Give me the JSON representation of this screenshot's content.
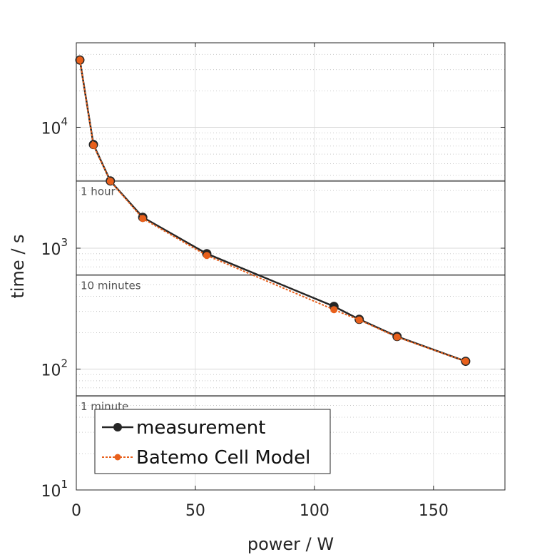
{
  "chart_data": {
    "type": "line",
    "xlabel": "power / W",
    "ylabel": "time / s",
    "xlim": [
      0,
      180
    ],
    "ylim": [
      10,
      50000
    ],
    "yscale": "log",
    "grid": true,
    "legend_position": "bottom-left",
    "x_ticks": [
      {
        "value": 0,
        "label": "0"
      },
      {
        "value": 50,
        "label": "50"
      },
      {
        "value": 100,
        "label": "100"
      },
      {
        "value": 150,
        "label": "150"
      }
    ],
    "y_ticks": [
      {
        "value": 10,
        "base": "10",
        "exp": "1"
      },
      {
        "value": 100,
        "base": "10",
        "exp": "2"
      },
      {
        "value": 1000,
        "base": "10",
        "exp": "3"
      },
      {
        "value": 10000,
        "base": "10",
        "exp": "4"
      }
    ],
    "reference_lines": [
      {
        "value": 3600,
        "label": "1 hour"
      },
      {
        "value": 600,
        "label": "10 minutes"
      },
      {
        "value": 60,
        "label": "1 minute"
      }
    ],
    "series": [
      {
        "name": "measurement",
        "color": "#262626",
        "style": "solid",
        "x": [
          1.5,
          7.2,
          14.3,
          27.9,
          54.8,
          108.2,
          118.8,
          134.7,
          163.5
        ],
        "y": [
          36000,
          7200,
          3600,
          1800,
          900,
          330,
          258,
          186,
          116
        ]
      },
      {
        "name": "Batemo Cell Model",
        "color": "#e8601c",
        "style": "dotted",
        "x": [
          1.5,
          7.2,
          14.3,
          27.9,
          54.8,
          108.2,
          118.8,
          134.7,
          163.5
        ],
        "y": [
          36000,
          7100,
          3580,
          1760,
          870,
          310,
          255,
          184,
          116
        ]
      }
    ]
  }
}
